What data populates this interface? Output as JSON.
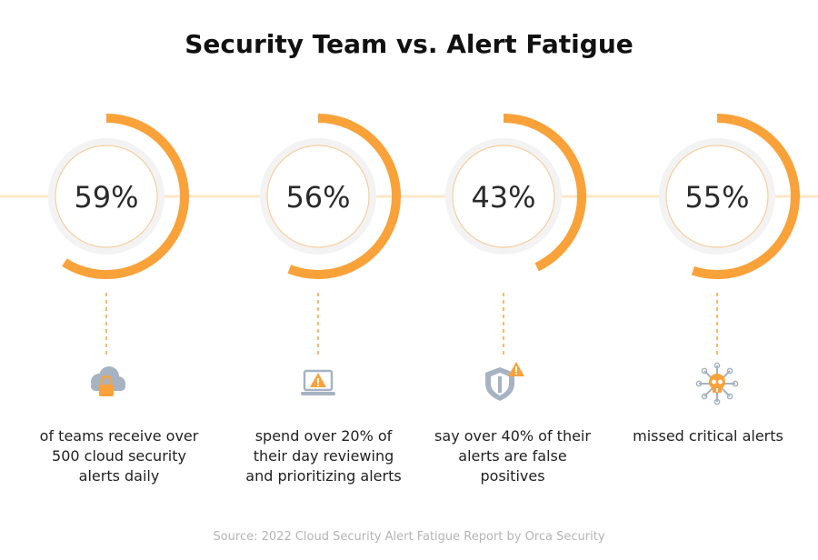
{
  "title": "Security Team vs. Alert Fatigue",
  "source": "Source: 2022 Cloud Security Alert Fatigue Report by Orca Security",
  "colors": {
    "accent": "#f9a23a",
    "connector": "#fde6c8",
    "circle_bg": "#f3f3f3",
    "inner_ring": "#f6cf9f",
    "icon_gray": "#a7b3c2",
    "text": "#222222"
  },
  "chart_data": {
    "type": "radial-progress",
    "title": "Security Team vs. Alert Fatigue",
    "unit": "%",
    "categories": [
      "of teams receive over 500 cloud security alerts daily",
      "spend over 20% of their day reviewing and prioritizing alerts",
      "say over 40% of their alerts are false positives",
      "missed critical alerts"
    ],
    "values": [
      59,
      56,
      43,
      55
    ]
  },
  "stats": [
    {
      "value_label": "59%",
      "value": 59,
      "icon": "cloud-lock-icon",
      "lines": [
        "of teams receive over",
        "500 cloud security",
        "alerts daily"
      ]
    },
    {
      "value_label": "56%",
      "value": 56,
      "icon": "laptop-warning-icon",
      "lines": [
        "spend over 20% of",
        "their day reviewing",
        "and prioritizing alerts"
      ]
    },
    {
      "value_label": "43%",
      "value": 43,
      "icon": "shield-warning-icon",
      "lines": [
        "say over 40% of their",
        "alerts are false",
        "positives"
      ]
    },
    {
      "value_label": "55%",
      "value": 55,
      "icon": "skull-chip-icon",
      "lines": [
        "missed critical alerts"
      ]
    }
  ]
}
